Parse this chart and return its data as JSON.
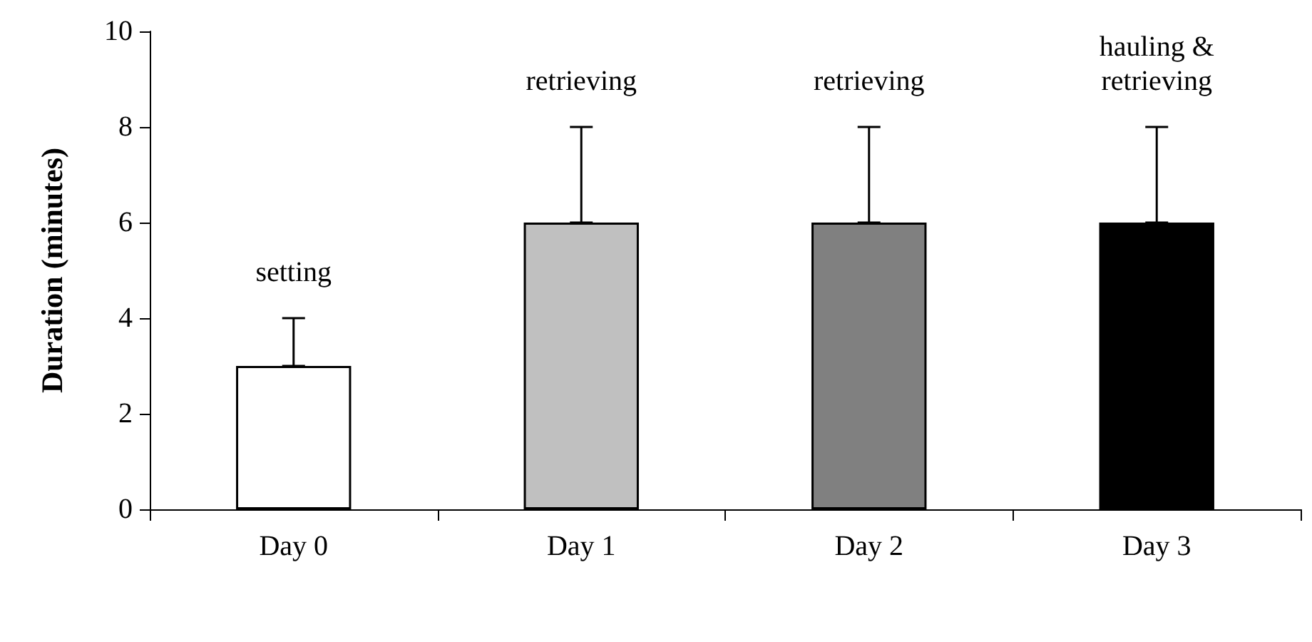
{
  "chart_data": {
    "type": "bar",
    "ylabel": "Duration (minutes)",
    "categories": [
      "Day 0",
      "Day 1",
      "Day 2",
      "Day 3"
    ],
    "values": [
      3,
      6,
      6,
      6
    ],
    "colors": [
      "#ffffff",
      "#c0c0c0",
      "#808080",
      "#000000"
    ],
    "errors": [
      [
        3,
        4
      ],
      [
        6,
        8
      ],
      [
        6,
        8
      ],
      [
        6,
        8
      ]
    ],
    "ylim": [
      0,
      10
    ],
    "yticks": [
      0,
      2,
      4,
      6,
      8,
      10
    ],
    "grid": false,
    "annotations": [
      "setting",
      "retrieving",
      "retrieving",
      "hauling &\nretrieving"
    ]
  }
}
